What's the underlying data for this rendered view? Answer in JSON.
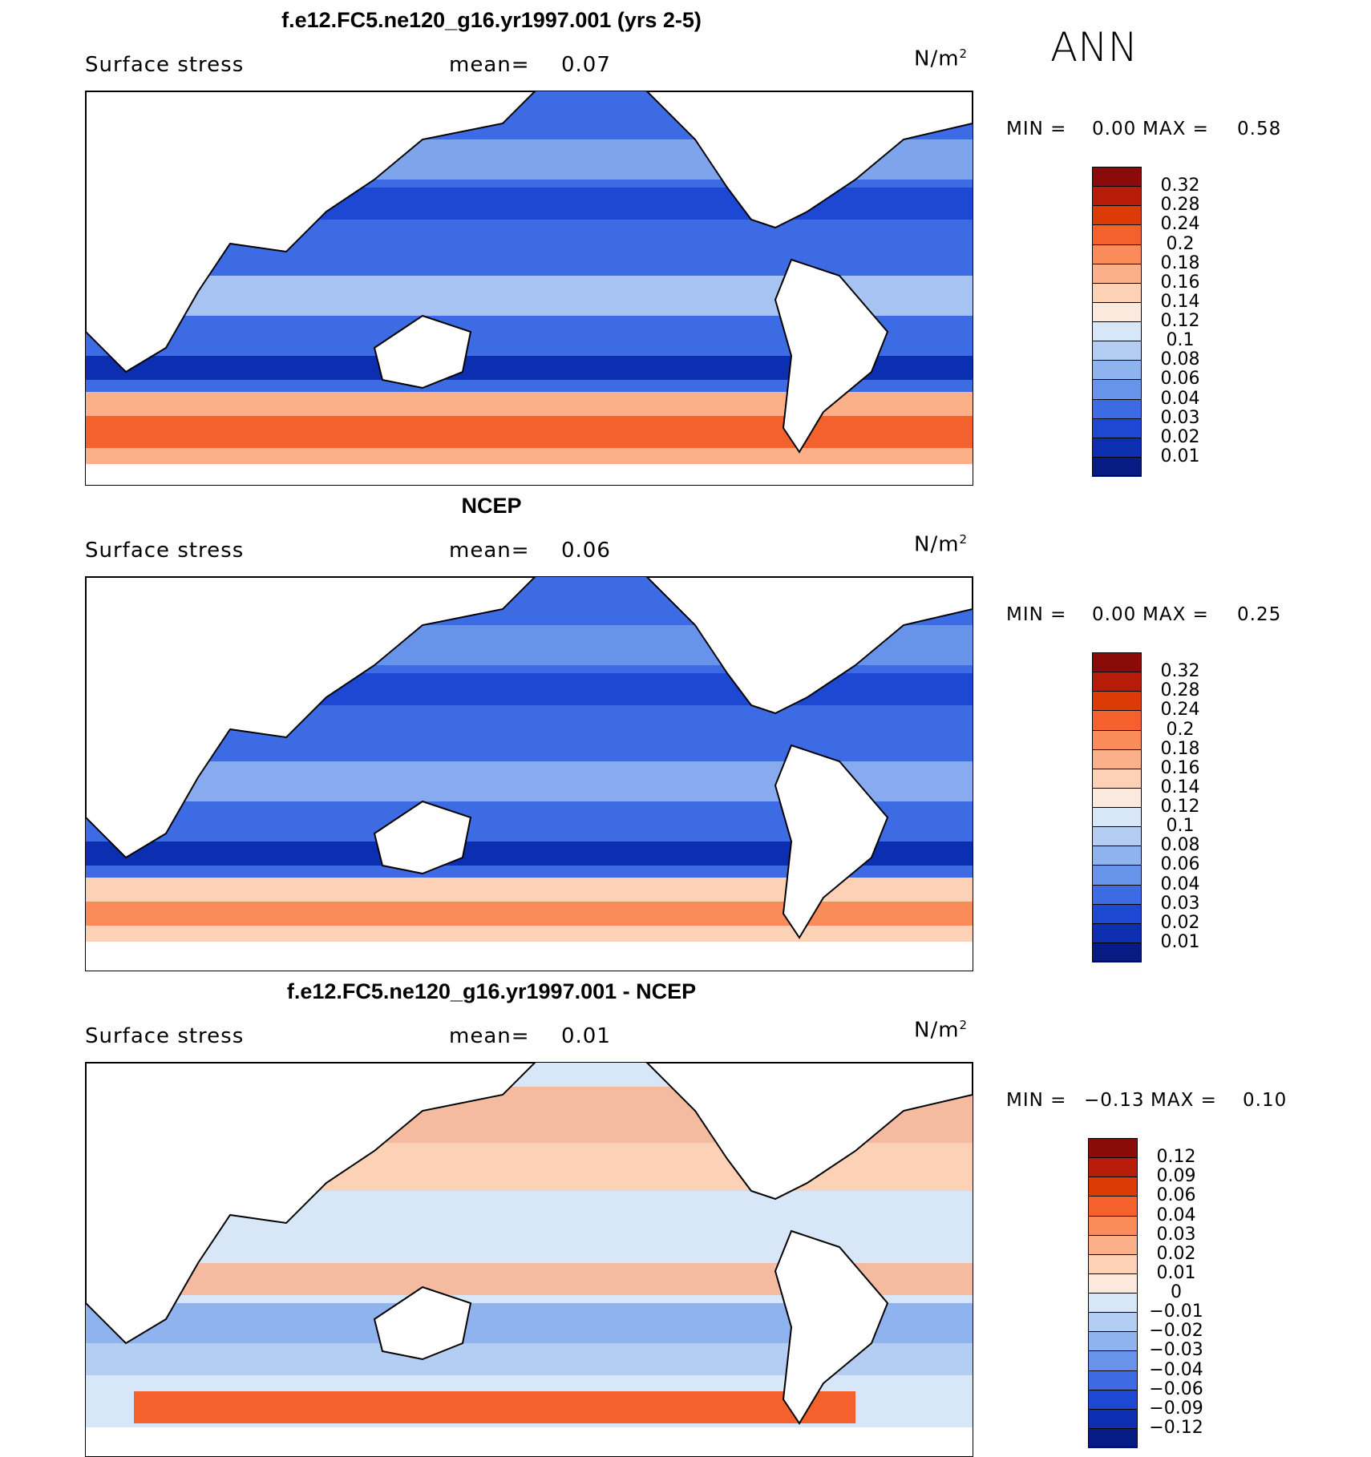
{
  "season": "ANN",
  "panels": [
    {
      "title": "f.e12.FC5.ne120_g16.yr1997.001 (yrs 2-5)",
      "variable": "Surface stress",
      "mean_label": "mean=",
      "mean": "0.07",
      "units": "N/m",
      "units_sup": "2",
      "min_label": "MIN =",
      "min": "0.00",
      "max_label": "MAX =",
      "max": "0.58",
      "levels": [
        "0.32",
        "0.28",
        "0.24",
        "0.2",
        "0.18",
        "0.16",
        "0.14",
        "0.12",
        "0.1",
        "0.08",
        "0.06",
        "0.04",
        "0.03",
        "0.02",
        "0.01"
      ],
      "colors": [
        "#8b0a0a",
        "#b71c08",
        "#dc3a06",
        "#f4612c",
        "#f98c58",
        "#fcb08a",
        "#fdd1b5",
        "#fbe9dd",
        "#d7e7f8",
        "#b3cdf3",
        "#8fb3ee",
        "#6893ea",
        "#3c6be3",
        "#1c48d4",
        "#0c2fb2",
        "#071b84"
      ]
    },
    {
      "title": "NCEP",
      "variable": "Surface stress",
      "mean_label": "mean=",
      "mean": "0.06",
      "units": "N/m",
      "units_sup": "2",
      "min_label": "MIN =",
      "min": "0.00",
      "max_label": "MAX =",
      "max": "0.25",
      "levels": [
        "0.32",
        "0.28",
        "0.24",
        "0.2",
        "0.18",
        "0.16",
        "0.14",
        "0.12",
        "0.1",
        "0.08",
        "0.06",
        "0.04",
        "0.03",
        "0.02",
        "0.01"
      ],
      "colors": [
        "#8b0a0a",
        "#b71c08",
        "#dc3a06",
        "#f4612c",
        "#f98c58",
        "#fcb08a",
        "#fdd1b5",
        "#fbe9dd",
        "#d7e7f8",
        "#b3cdf3",
        "#8fb3ee",
        "#6893ea",
        "#3c6be3",
        "#1c48d4",
        "#0c2fb2",
        "#071b84"
      ]
    },
    {
      "title": "f.e12.FC5.ne120_g16.yr1997.001 - NCEP",
      "variable": "Surface stress",
      "mean_label": "mean=",
      "mean": "0.01",
      "units": "N/m",
      "units_sup": "2",
      "min_label": "MIN =",
      "min": "−0.13",
      "max_label": "MAX =",
      "max": "0.10",
      "levels": [
        "0.12",
        "0.09",
        "0.06",
        "0.04",
        "0.03",
        "0.02",
        "0.01",
        "0",
        "−0.01",
        "−0.02",
        "−0.03",
        "−0.04",
        "−0.06",
        "−0.09",
        "−0.12"
      ],
      "colors": [
        "#8b0a0a",
        "#b71c08",
        "#dc3a06",
        "#f4612c",
        "#f98c58",
        "#fcb08a",
        "#fdd1b5",
        "#fbe9dd",
        "#d7e7f8",
        "#b3cdf3",
        "#8fb3ee",
        "#6893ea",
        "#3c6be3",
        "#1c48d4",
        "#0c2fb2",
        "#071b84"
      ]
    }
  ]
}
